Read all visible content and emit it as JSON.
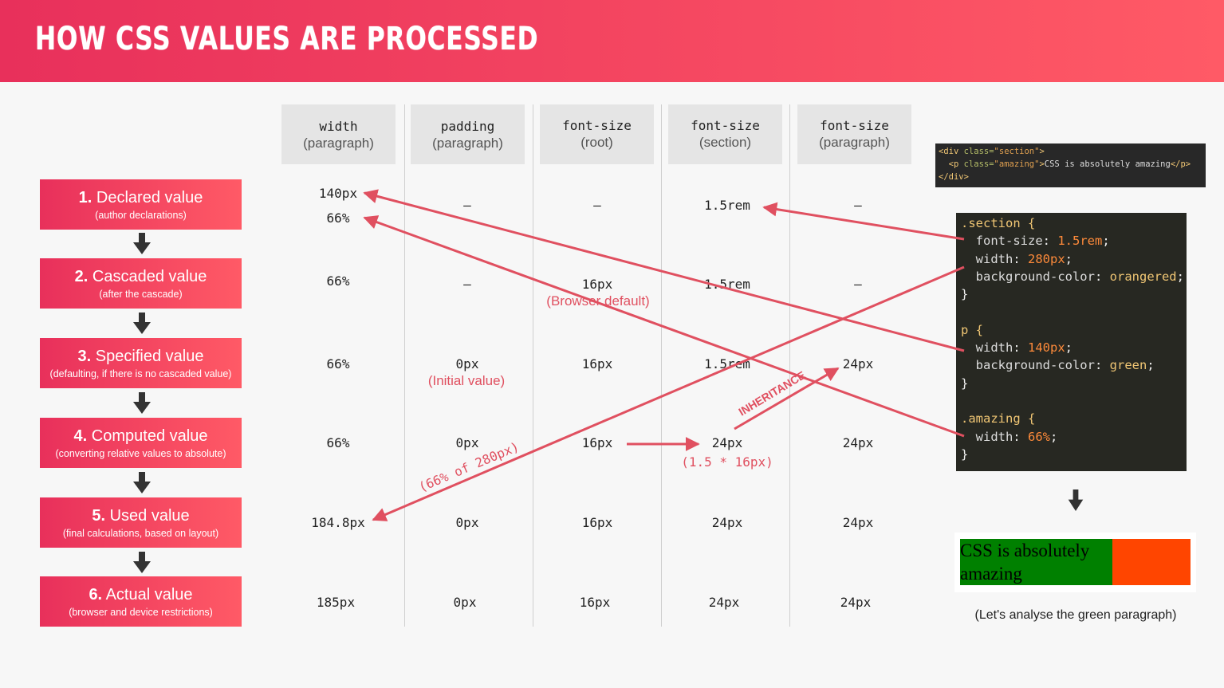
{
  "header": {
    "title": "HOW CSS VALUES ARE PROCESSED"
  },
  "steps": [
    {
      "num": "1.",
      "title": "Declared value",
      "sub": "(author declarations)"
    },
    {
      "num": "2.",
      "title": "Cascaded value",
      "sub": "(after the cascade)"
    },
    {
      "num": "3.",
      "title": "Specified value",
      "sub": "(defaulting, if there is no cascaded value)"
    },
    {
      "num": "4.",
      "title": "Computed value",
      "sub": "(converting relative values to absolute)"
    },
    {
      "num": "5.",
      "title": "Used value",
      "sub": "(final calculations, based on layout)"
    },
    {
      "num": "6.",
      "title": "Actual value",
      "sub": "(browser and device restrictions)"
    }
  ],
  "columns": [
    {
      "prop": "width",
      "ctx": "(paragraph)"
    },
    {
      "prop": "padding",
      "ctx": "(paragraph)"
    },
    {
      "prop": "font-size",
      "ctx": "(root)"
    },
    {
      "prop": "font-size",
      "ctx": "(section)"
    },
    {
      "prop": "font-size",
      "ctx": "(paragraph)"
    }
  ],
  "cells": {
    "declared": [
      "140px",
      "66%",
      "—",
      "—",
      "1.5rem",
      "—"
    ],
    "cascaded": [
      "66%",
      "—",
      "16px",
      "1.5rem",
      "—"
    ],
    "specified": [
      "66%",
      "0px",
      "16px",
      "1.5rem",
      "24px"
    ],
    "computed": [
      "66%",
      "0px",
      "16px",
      "24px",
      "24px"
    ],
    "used": [
      "184.8px",
      "0px",
      "16px",
      "24px",
      "24px"
    ],
    "actual": [
      "185px",
      "0px",
      "16px",
      "24px",
      "24px"
    ]
  },
  "notes": {
    "browser_default": "(Browser default)",
    "initial_value": "(Initial value)",
    "calc": "(1.5 * 16px)",
    "inheritance": "INHERITANCE",
    "percent_of": "(66% of 280px)"
  },
  "html_code": {
    "line1_open": "<div ",
    "line1_attr": "class=",
    "line1_str": "\"section\"",
    "line1_close": ">",
    "line2_open": "  <p ",
    "line2_attr": "class=",
    "line2_str": "\"amazing\"",
    "line2_close": ">",
    "line2_text": "CSS is absolutely amazing",
    "line2_end": "</p>",
    "line3": "</div>"
  },
  "css_code": {
    "section_sel": ".section {",
    "section_fs_prop": "  font-size",
    "section_fs_val": "1.5rem",
    "section_w_prop": "  width",
    "section_w_val": "280px",
    "section_bg_prop": "  background-color",
    "section_bg_val": "orangered",
    "close1": "}",
    "p_sel": "p {",
    "p_w_prop": "  width",
    "p_w_val": "140px",
    "p_bg_prop": "  background-color",
    "p_bg_val": "green",
    "close2": "}",
    "amazing_sel": ".amazing {",
    "amazing_w_prop": "  width",
    "amazing_w_val": "66%",
    "close3": "}"
  },
  "demo": {
    "text": "CSS is absolutely amazing",
    "section_color": "#ff4500",
    "paragraph_color": "#008000"
  },
  "caption": "(Let's analyse the green paragraph)",
  "colors": {
    "accent_start": "#e8305b",
    "accent_end": "#ff5a66",
    "arrow": "#e05060"
  }
}
